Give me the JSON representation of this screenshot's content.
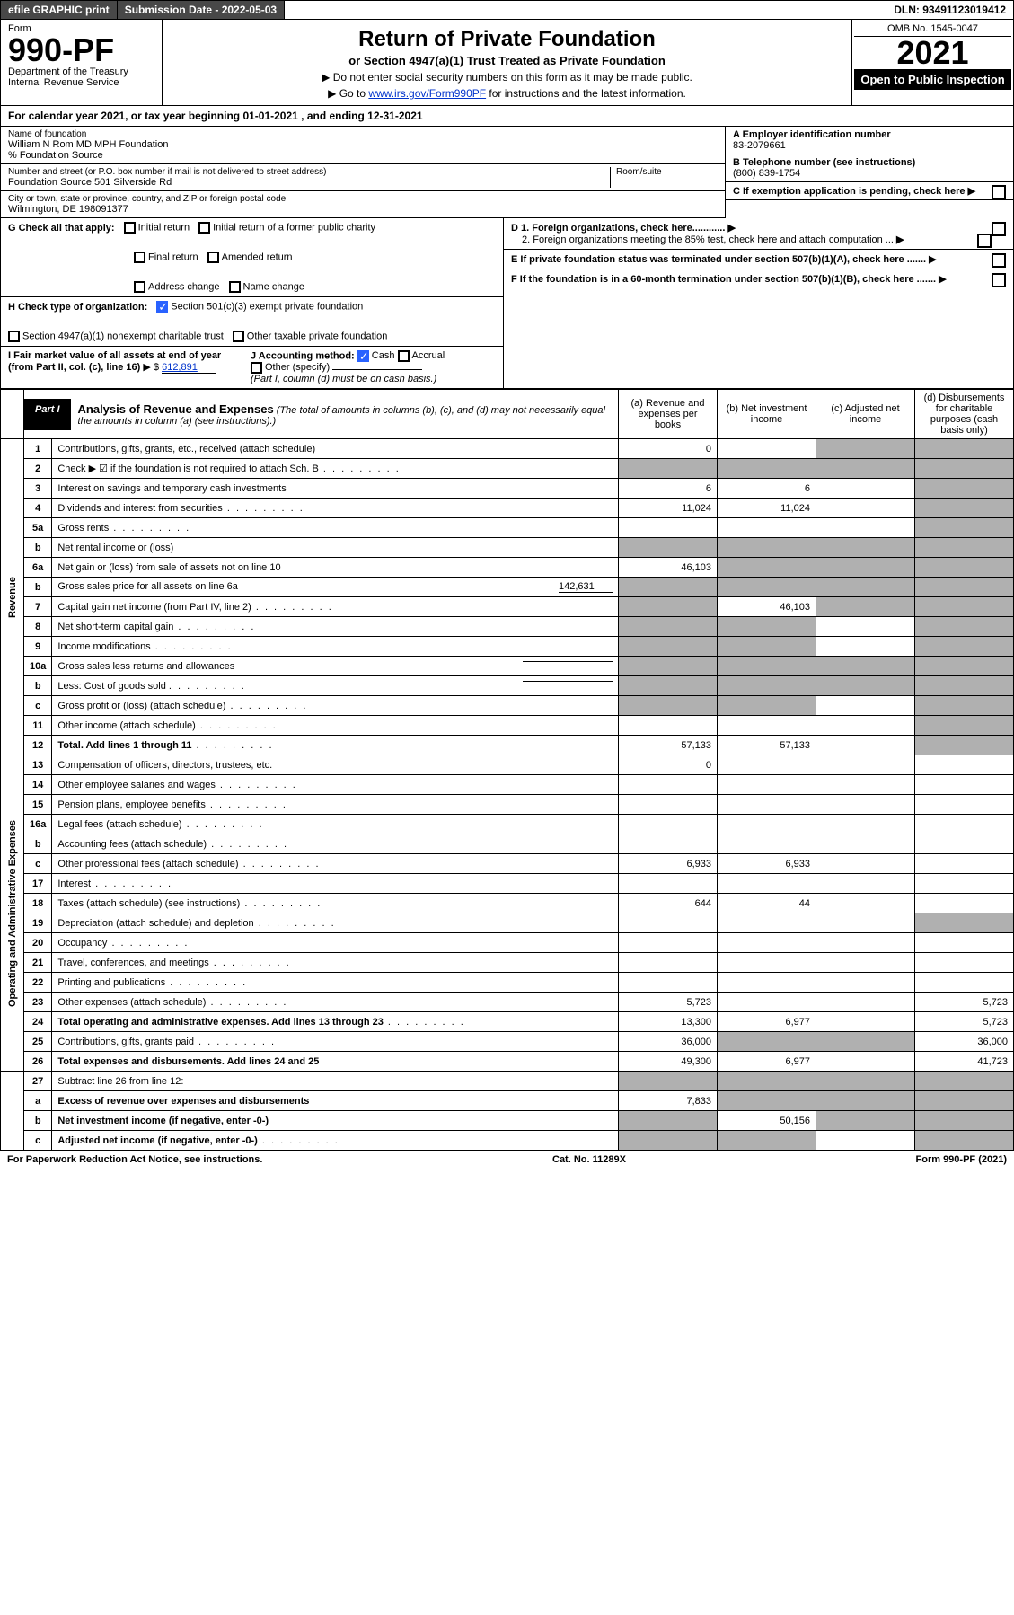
{
  "top_bar": {
    "efile": "efile GRAPHIC print",
    "submission_label": "Submission Date - 2022-05-03",
    "dln": "DLN: 93491123019412"
  },
  "header": {
    "form_label": "Form",
    "form_number": "990-PF",
    "dept1": "Department of the Treasury",
    "dept2": "Internal Revenue Service",
    "title": "Return of Private Foundation",
    "subtitle": "or Section 4947(a)(1) Trust Treated as Private Foundation",
    "instr1": "▶ Do not enter social security numbers on this form as it may be made public.",
    "instr2_pre": "▶ Go to ",
    "instr2_link": "www.irs.gov/Form990PF",
    "instr2_post": " for instructions and the latest information.",
    "omb": "OMB No. 1545-0047",
    "year": "2021",
    "inspect": "Open to Public Inspection"
  },
  "calendar_year": "For calendar year 2021, or tax year beginning 01-01-2021               , and ending 12-31-2021",
  "info": {
    "name_lbl": "Name of foundation",
    "name": "William N Rom MD MPH Foundation",
    "care_of": "% Foundation Source",
    "addr_lbl": "Number and street (or P.O. box number if mail is not delivered to street address)",
    "addr": "Foundation Source 501 Silverside Rd",
    "room_lbl": "Room/suite",
    "city_lbl": "City or town, state or province, country, and ZIP or foreign postal code",
    "city": "Wilmington, DE  198091377",
    "A_lbl": "A Employer identification number",
    "A_val": "83-2079661",
    "B_lbl": "B Telephone number (see instructions)",
    "B_val": "(800) 839-1754",
    "C_lbl": "C If exemption application is pending, check here",
    "D1": "D 1. Foreign organizations, check here............",
    "D2": "2. Foreign organizations meeting the 85% test, check here and attach computation ...",
    "E": "E  If private foundation status was terminated under section 507(b)(1)(A), check here .......",
    "F": "F  If the foundation is in a 60-month termination under section 507(b)(1)(B), check here .......",
    "G_lbl": "G Check all that apply:",
    "G_opts": [
      "Initial return",
      "Initial return of a former public charity",
      "Final return",
      "Amended return",
      "Address change",
      "Name change"
    ],
    "H_lbl": "H Check type of organization:",
    "H_opt1": "Section 501(c)(3) exempt private foundation",
    "H_opt2": "Section 4947(a)(1) nonexempt charitable trust",
    "H_opt3": "Other taxable private foundation",
    "I_lbl": "I Fair market value of all assets at end of year (from Part II, col. (c), line 16)",
    "I_prefix": "▶ $",
    "I_val": "612,891",
    "J_lbl": "J Accounting method:",
    "J_cash": "Cash",
    "J_accrual": "Accrual",
    "J_other": "Other (specify)",
    "J_note": "(Part I, column (d) must be on cash basis.)"
  },
  "part1": {
    "tab": "Part I",
    "title": "Analysis of Revenue and Expenses",
    "note": " (The total of amounts in columns (b), (c), and (d) may not necessarily equal the amounts in column (a) (see instructions).)",
    "col_a": "(a)   Revenue and expenses per books",
    "col_b": "(b)   Net investment income",
    "col_c": "(c)   Adjusted net income",
    "col_d": "(d)   Disbursements for charitable purposes (cash basis only)"
  },
  "side_labels": {
    "revenue": "Revenue",
    "expenses": "Operating and Administrative Expenses"
  },
  "rows": [
    {
      "n": "1",
      "d": "Contributions, gifts, grants, etc., received (attach schedule)",
      "a": "0",
      "b": "",
      "c": "shade",
      "dd": "shade"
    },
    {
      "n": "2",
      "d": "Check ▶ ☑ if the foundation is not required to attach Sch. B",
      "a": "shade",
      "b": "shade",
      "c": "shade",
      "dd": "shade",
      "dots": true
    },
    {
      "n": "3",
      "d": "Interest on savings and temporary cash investments",
      "a": "6",
      "b": "6",
      "c": "",
      "dd": "shade"
    },
    {
      "n": "4",
      "d": "Dividends and interest from securities",
      "a": "11,024",
      "b": "11,024",
      "c": "",
      "dd": "shade",
      "dots": true
    },
    {
      "n": "5a",
      "d": "Gross rents",
      "a": "",
      "b": "",
      "c": "",
      "dd": "shade",
      "dots": true
    },
    {
      "n": "b",
      "d": "Net rental income or (loss)",
      "a": "shade",
      "b": "shade",
      "c": "shade",
      "dd": "shade",
      "inline_blank": true
    },
    {
      "n": "6a",
      "d": "Net gain or (loss) from sale of assets not on line 10",
      "a": "46,103",
      "b": "shade",
      "c": "shade",
      "dd": "shade"
    },
    {
      "n": "b",
      "d": "Gross sales price for all assets on line 6a",
      "a": "shade",
      "b": "shade",
      "c": "shade",
      "dd": "shade",
      "inline_val": "142,631"
    },
    {
      "n": "7",
      "d": "Capital gain net income (from Part IV, line 2)",
      "a": "shade",
      "b": "46,103",
      "c": "shade",
      "dd": "shade",
      "dots": true
    },
    {
      "n": "8",
      "d": "Net short-term capital gain",
      "a": "shade",
      "b": "shade",
      "c": "",
      "dd": "shade",
      "dots": true
    },
    {
      "n": "9",
      "d": "Income modifications",
      "a": "shade",
      "b": "shade",
      "c": "",
      "dd": "shade",
      "dots": true
    },
    {
      "n": "10a",
      "d": "Gross sales less returns and allowances",
      "a": "shade",
      "b": "shade",
      "c": "shade",
      "dd": "shade",
      "inline_blank": true
    },
    {
      "n": "b",
      "d": "Less: Cost of goods sold",
      "a": "shade",
      "b": "shade",
      "c": "shade",
      "dd": "shade",
      "dots": true,
      "inline_blank": true
    },
    {
      "n": "c",
      "d": "Gross profit or (loss) (attach schedule)",
      "a": "shade",
      "b": "shade",
      "c": "",
      "dd": "shade",
      "dots": true
    },
    {
      "n": "11",
      "d": "Other income (attach schedule)",
      "a": "",
      "b": "",
      "c": "",
      "dd": "shade",
      "dots": true
    },
    {
      "n": "12",
      "d": "Total. Add lines 1 through 11",
      "a": "57,133",
      "b": "57,133",
      "c": "",
      "dd": "shade",
      "bold": true,
      "dots": true
    }
  ],
  "exp_rows": [
    {
      "n": "13",
      "d": "Compensation of officers, directors, trustees, etc.",
      "a": "0",
      "b": "",
      "c": "",
      "dd": ""
    },
    {
      "n": "14",
      "d": "Other employee salaries and wages",
      "a": "",
      "b": "",
      "c": "",
      "dd": "",
      "dots": true
    },
    {
      "n": "15",
      "d": "Pension plans, employee benefits",
      "a": "",
      "b": "",
      "c": "",
      "dd": "",
      "dots": true
    },
    {
      "n": "16a",
      "d": "Legal fees (attach schedule)",
      "a": "",
      "b": "",
      "c": "",
      "dd": "",
      "dots": true
    },
    {
      "n": "b",
      "d": "Accounting fees (attach schedule)",
      "a": "",
      "b": "",
      "c": "",
      "dd": "",
      "dots": true
    },
    {
      "n": "c",
      "d": "Other professional fees (attach schedule)",
      "a": "6,933",
      "b": "6,933",
      "c": "",
      "dd": "",
      "dots": true
    },
    {
      "n": "17",
      "d": "Interest",
      "a": "",
      "b": "",
      "c": "",
      "dd": "",
      "dots": true
    },
    {
      "n": "18",
      "d": "Taxes (attach schedule) (see instructions)",
      "a": "644",
      "b": "44",
      "c": "",
      "dd": "",
      "dots": true
    },
    {
      "n": "19",
      "d": "Depreciation (attach schedule) and depletion",
      "a": "",
      "b": "",
      "c": "",
      "dd": "shade",
      "dots": true
    },
    {
      "n": "20",
      "d": "Occupancy",
      "a": "",
      "b": "",
      "c": "",
      "dd": "",
      "dots": true
    },
    {
      "n": "21",
      "d": "Travel, conferences, and meetings",
      "a": "",
      "b": "",
      "c": "",
      "dd": "",
      "dots": true
    },
    {
      "n": "22",
      "d": "Printing and publications",
      "a": "",
      "b": "",
      "c": "",
      "dd": "",
      "dots": true
    },
    {
      "n": "23",
      "d": "Other expenses (attach schedule)",
      "a": "5,723",
      "b": "",
      "c": "",
      "dd": "5,723",
      "dots": true
    },
    {
      "n": "24",
      "d": "Total operating and administrative expenses. Add lines 13 through 23",
      "a": "13,300",
      "b": "6,977",
      "c": "",
      "dd": "5,723",
      "bold": true,
      "dots": true
    },
    {
      "n": "25",
      "d": "Contributions, gifts, grants paid",
      "a": "36,000",
      "b": "shade",
      "c": "shade",
      "dd": "36,000",
      "dots": true
    },
    {
      "n": "26",
      "d": "Total expenses and disbursements. Add lines 24 and 25",
      "a": "49,300",
      "b": "6,977",
      "c": "",
      "dd": "41,723",
      "bold": true
    }
  ],
  "final_rows": [
    {
      "n": "27",
      "d": "Subtract line 26 from line 12:",
      "a": "shade",
      "b": "shade",
      "c": "shade",
      "dd": "shade"
    },
    {
      "n": "a",
      "d": "Excess of revenue over expenses and disbursements",
      "a": "7,833",
      "b": "shade",
      "c": "shade",
      "dd": "shade",
      "bold": true
    },
    {
      "n": "b",
      "d": "Net investment income (if negative, enter -0-)",
      "a": "shade",
      "b": "50,156",
      "c": "shade",
      "dd": "shade",
      "bold": true
    },
    {
      "n": "c",
      "d": "Adjusted net income (if negative, enter -0-)",
      "a": "shade",
      "b": "shade",
      "c": "",
      "dd": "shade",
      "bold": true,
      "dots": true
    }
  ],
  "footer": {
    "left": "For Paperwork Reduction Act Notice, see instructions.",
    "mid": "Cat. No. 11289X",
    "right": "Form 990-PF (2021)"
  }
}
